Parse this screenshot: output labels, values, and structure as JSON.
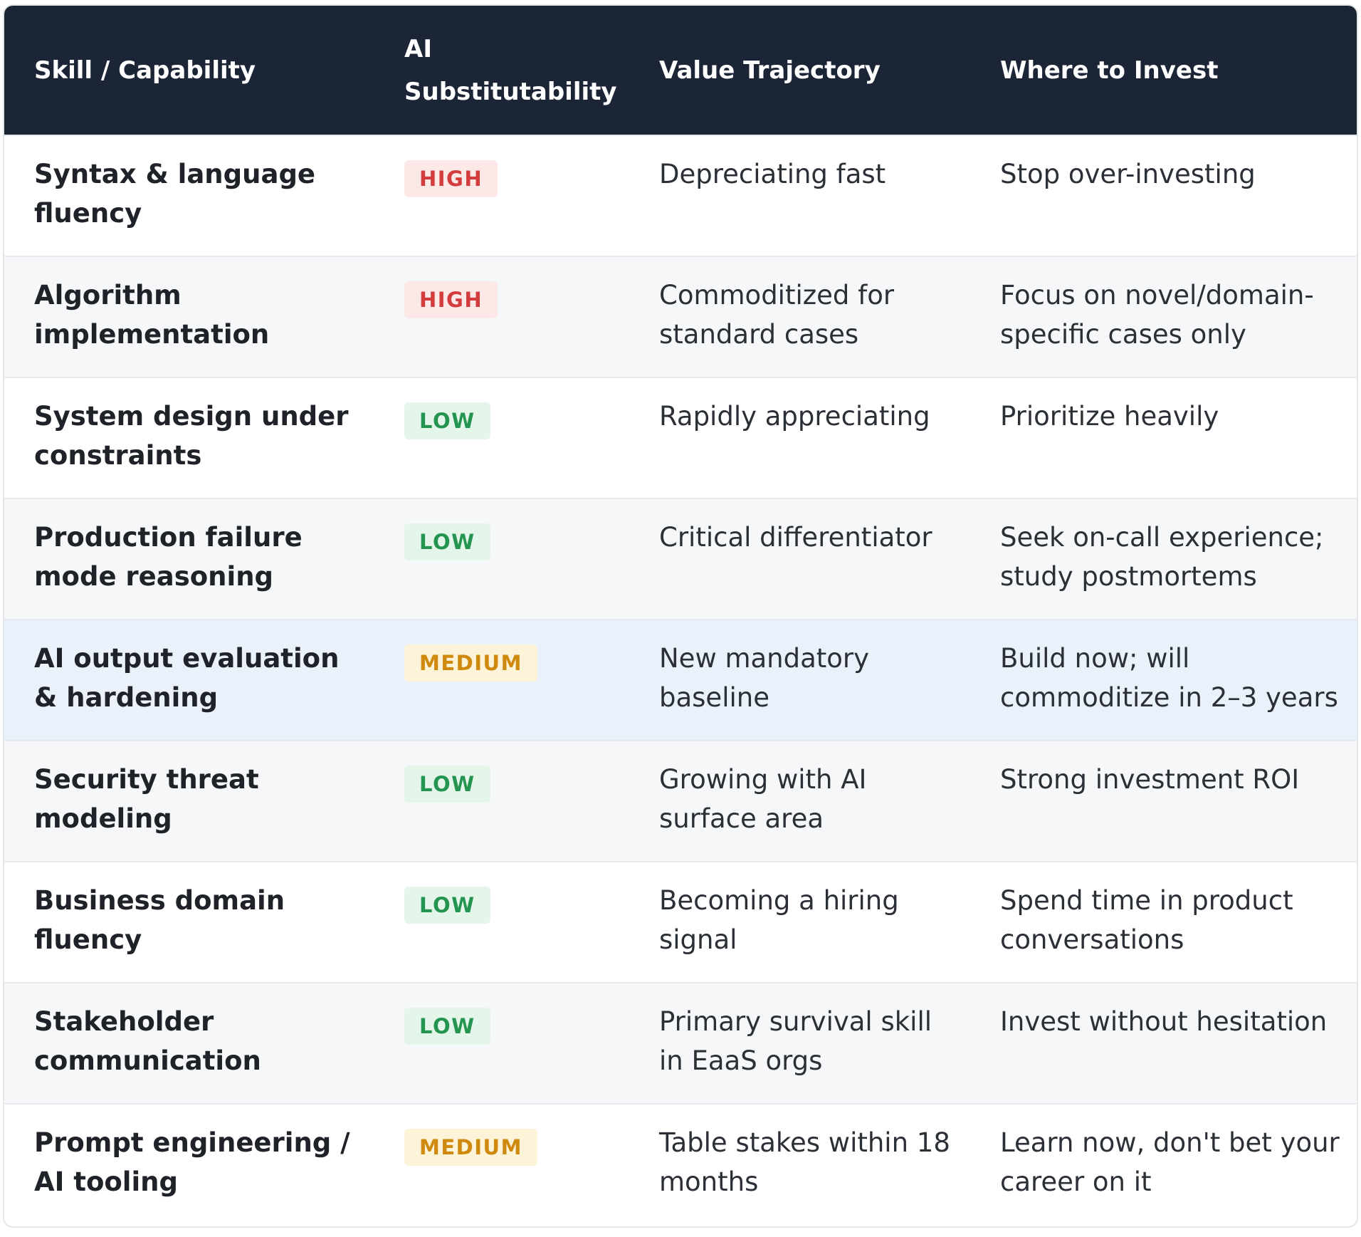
{
  "table": {
    "headers": [
      "Skill / Capability",
      "AI Substitutability",
      "Value Trajectory",
      "Where to Invest"
    ],
    "rows": [
      {
        "skill": "Syntax & language fluency",
        "level": "HIGH",
        "trajectory": "Depreciating fast",
        "invest": "Stop over-investing"
      },
      {
        "skill": "Algorithm implementation",
        "level": "HIGH",
        "trajectory": "Commoditized for standard cases",
        "invest": "Focus on novel/domain-specific cases only"
      },
      {
        "skill": "System design under constraints",
        "level": "LOW",
        "trajectory": "Rapidly appreciating",
        "invest": "Prioritize heavily"
      },
      {
        "skill": "Production failure mode reasoning",
        "level": "LOW",
        "trajectory": "Critical differentiator",
        "invest": "Seek on-call experience; study postmortems"
      },
      {
        "skill": "AI output evaluation & hardening",
        "level": "MEDIUM",
        "trajectory": "New mandatory baseline",
        "invest": "Build now; will commoditize in 2–3 years"
      },
      {
        "skill": "Security threat modeling",
        "level": "LOW",
        "trajectory": "Growing with AI surface area",
        "invest": "Strong investment ROI"
      },
      {
        "skill": "Business domain fluency",
        "level": "LOW",
        "trajectory": "Becoming a hiring signal",
        "invest": "Spend time in product conversations"
      },
      {
        "skill": "Stakeholder communication",
        "level": "LOW",
        "trajectory": "Primary survival skill in EaaS orgs",
        "invest": "Invest without hesitation"
      },
      {
        "skill": "Prompt engineering / AI tooling",
        "level": "MEDIUM",
        "trajectory": "Table stakes within 18 months",
        "invest": "Learn now, don't bet your career on it"
      }
    ]
  },
  "colors": {
    "header_bg": "#1c2536",
    "highlight_row": "#eaf1fb",
    "high": "#d23c3c",
    "medium": "#cf8a0d",
    "low": "#239550"
  }
}
